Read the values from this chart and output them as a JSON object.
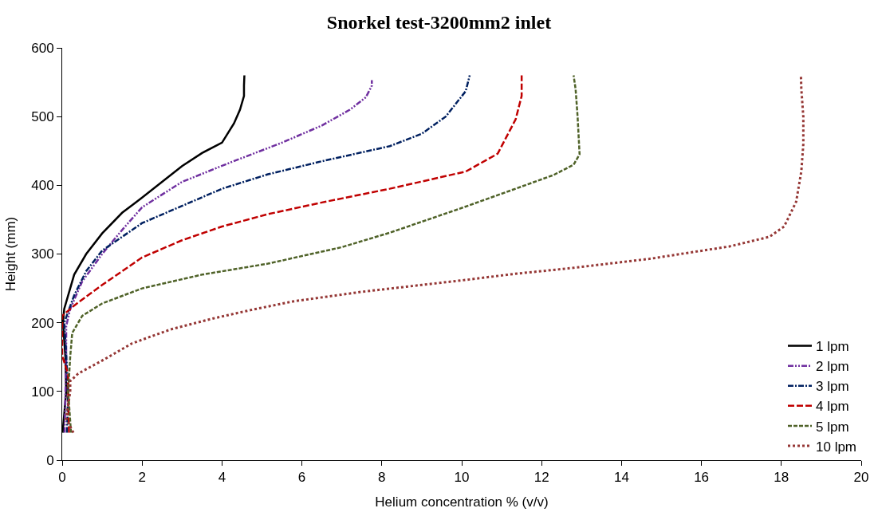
{
  "chart_data": {
    "type": "line",
    "title": "Snorkel test-3200mm2 inlet",
    "xlabel": "Helium concentration % (v/v)",
    "ylabel": "Height (mm)",
    "xlim": [
      0,
      20
    ],
    "xticks": [
      0,
      2,
      4,
      6,
      8,
      10,
      12,
      14,
      16,
      18,
      20
    ],
    "ylim": [
      0,
      600
    ],
    "yticks": [
      0,
      100,
      200,
      300,
      400,
      500,
      600
    ],
    "legend": "bottom right",
    "marker": "none",
    "series": [
      {
        "name": "1 lpm",
        "color": "#000000",
        "line_style": "solid",
        "x": [
          0.01,
          0.1,
          0.08,
          0.02,
          0.05,
          0.3,
          0.6,
          1,
          1.5,
          2,
          2.5,
          3,
          3.5,
          4,
          4.3,
          4.45,
          4.55,
          4.55,
          4.56
        ],
        "values": [
          40,
          100,
          150,
          200,
          220,
          270,
          300,
          330,
          360,
          382,
          405,
          428,
          447,
          462,
          490,
          510,
          530,
          545,
          560
        ]
      },
      {
        "name": "2 lpm",
        "color": "#7030a0",
        "line_style": "dashdotdot",
        "x": [
          0.06,
          0.1,
          0.1,
          0.2,
          0.5,
          1,
          1.5,
          2,
          3,
          4.2,
          5.5,
          6.5,
          7.2,
          7.6,
          7.75,
          7.75
        ],
        "values": [
          40,
          150,
          195,
          220,
          260,
          300,
          335,
          368,
          405,
          433,
          462,
          487,
          510,
          528,
          545,
          553
        ]
      },
      {
        "name": "3 lpm",
        "color": "#002060",
        "line_style": "dashdot",
        "x": [
          0.12,
          0.15,
          0.1,
          0.05,
          0.3,
          0.6,
          1,
          2,
          3,
          4,
          5.15,
          6.5,
          8.2,
          9,
          9.6,
          10.1,
          10.2
        ],
        "values": [
          40,
          100,
          155,
          200,
          240,
          275,
          305,
          345,
          370,
          395,
          416,
          435,
          457,
          475,
          500,
          537,
          560
        ]
      },
      {
        "name": "4 lpm",
        "color": "#c00000",
        "line_style": "longdash",
        "x": [
          0.17,
          0.15,
          0.15,
          0,
          0,
          0.3,
          1,
          2,
          3,
          4,
          5.15,
          6.5,
          8.2,
          10.1,
          10.9,
          11.35,
          11.5,
          11.5
        ],
        "values": [
          40,
          100,
          125,
          152,
          210,
          225,
          255,
          295,
          320,
          340,
          358,
          375,
          395,
          420,
          446,
          496,
          530,
          560
        ]
      },
      {
        "name": "5 lpm",
        "color": "#4f6228",
        "line_style": "dashed",
        "x": [
          0.22,
          0.15,
          0.2,
          0.25,
          0.5,
          1,
          2,
          3.5,
          5.15,
          7,
          8.2,
          10,
          11.3,
          12.3,
          12.8,
          12.95,
          12.9,
          12.85,
          12.8
        ],
        "values": [
          40,
          100,
          150,
          185,
          210,
          228,
          250,
          270,
          286,
          310,
          331,
          367,
          394,
          415,
          430,
          445,
          500,
          540,
          560
        ]
      },
      {
        "name": "10 lpm",
        "color": "#953735",
        "line_style": "dotted",
        "x": [
          0.28,
          0.1,
          0.15,
          0.2,
          0.2,
          0.4,
          1,
          1.75,
          2.7,
          3.76,
          4.76,
          5.77,
          7.5,
          9,
          10.2,
          11.3,
          12.66,
          14.7,
          16.7,
          17.7,
          18.07,
          18.37,
          18.5,
          18.55,
          18.55,
          18.5,
          18.49
        ],
        "values": [
          40,
          60,
          80,
          100,
          115,
          126,
          145,
          170,
          190,
          206,
          219,
          231,
          245,
          255,
          263,
          271,
          279,
          293,
          311,
          325,
          340,
          376,
          420,
          460,
          500,
          540,
          560
        ]
      }
    ]
  }
}
